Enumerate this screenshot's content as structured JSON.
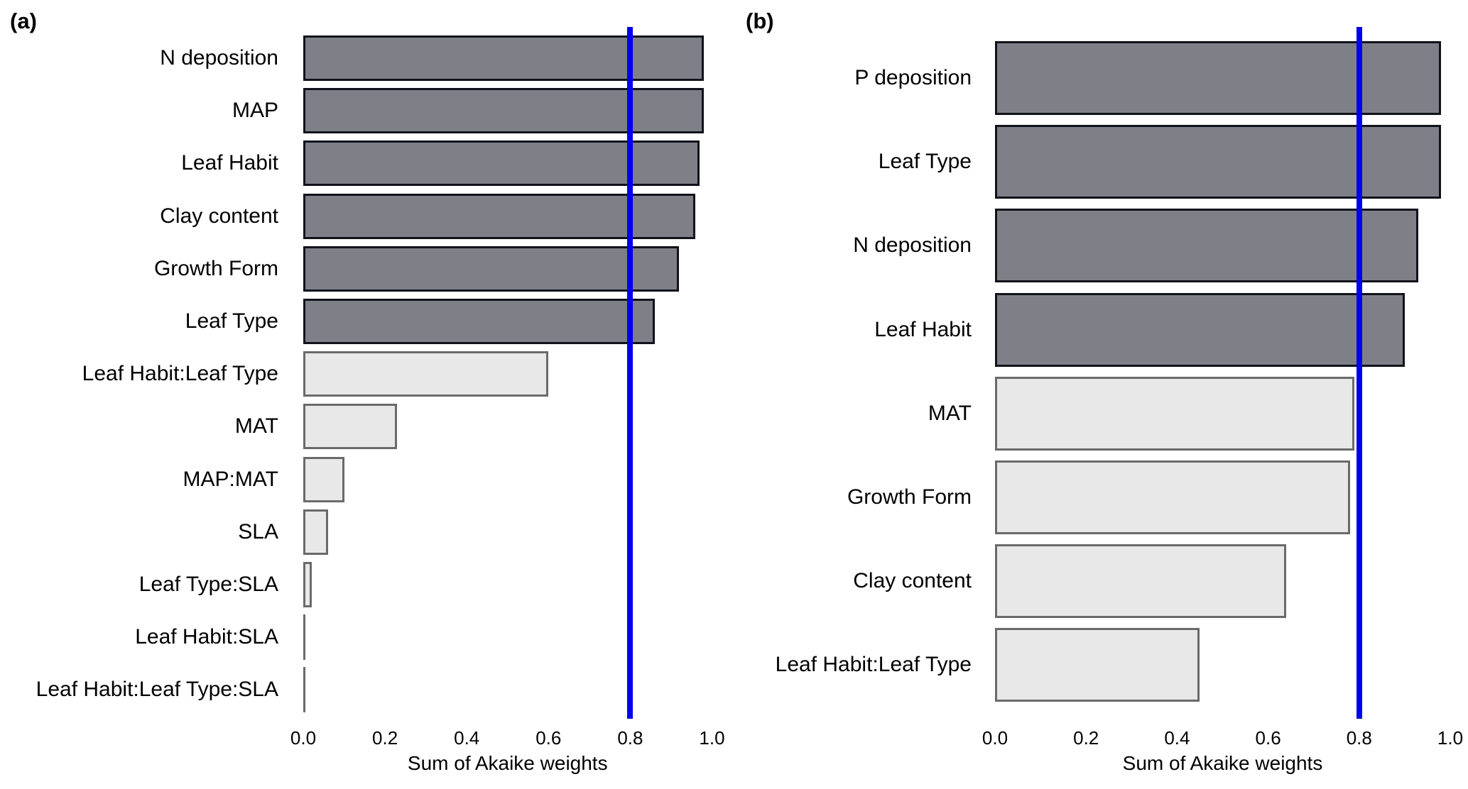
{
  "colors": {
    "above_fill": "#7f7f87",
    "above_border": "#12121c",
    "below_fill": "#e8e8e8",
    "below_border": "#6a6a6a",
    "threshold_line": "#0000ee",
    "text": "#000000",
    "background": "#ffffff"
  },
  "chart_data": [
    {
      "type": "bar",
      "orientation": "horizontal",
      "panel_tag": "(a)",
      "title": "",
      "xlabel": "Sum of Akaike weights",
      "ylabel": "",
      "xlim": [
        0,
        1.05
      ],
      "grid": false,
      "legend": "none",
      "threshold_line": 0.8,
      "x_ticks": [
        0.0,
        0.2,
        0.4,
        0.6,
        0.8,
        1.0
      ],
      "x_tick_labels": [
        "0.0",
        "0.2",
        "0.4",
        "0.6",
        "0.8",
        "1.0"
      ],
      "categories": [
        "N deposition",
        "MAP",
        "Leaf Habit",
        "Clay content",
        "Growth Form",
        "Leaf Type",
        "Leaf Habit:Leaf Type",
        "MAT",
        "MAP:MAT",
        "SLA",
        "Leaf Type:SLA",
        "Leaf Habit:SLA",
        "Leaf Habit:Leaf Type:SLA"
      ],
      "values": [
        0.98,
        0.98,
        0.97,
        0.96,
        0.92,
        0.86,
        0.6,
        0.23,
        0.1,
        0.06,
        0.02,
        0.003,
        0.003
      ],
      "bar_class": [
        "above",
        "above",
        "above",
        "above",
        "above",
        "above",
        "below",
        "below",
        "below",
        "below",
        "below",
        "below",
        "below"
      ]
    },
    {
      "type": "bar",
      "orientation": "horizontal",
      "panel_tag": "(b)",
      "title": "",
      "xlabel": "Sum of Akaike weights",
      "ylabel": "",
      "xlim": [
        0,
        1.05
      ],
      "grid": false,
      "legend": "none",
      "threshold_line": 0.8,
      "x_ticks": [
        0.0,
        0.2,
        0.4,
        0.6,
        0.8,
        1.0
      ],
      "x_tick_labels": [
        "0.0",
        "0.2",
        "0.4",
        "0.6",
        "0.8",
        "1.0"
      ],
      "categories": [
        "P deposition",
        "Leaf Type",
        "N deposition",
        "Leaf Habit",
        "MAT",
        "Growth Form",
        "Clay content",
        "Leaf Habit:Leaf Type"
      ],
      "values": [
        0.98,
        0.98,
        0.93,
        0.9,
        0.79,
        0.78,
        0.64,
        0.45
      ],
      "bar_class": [
        "above",
        "above",
        "above",
        "above",
        "below",
        "below",
        "below",
        "below"
      ]
    }
  ]
}
